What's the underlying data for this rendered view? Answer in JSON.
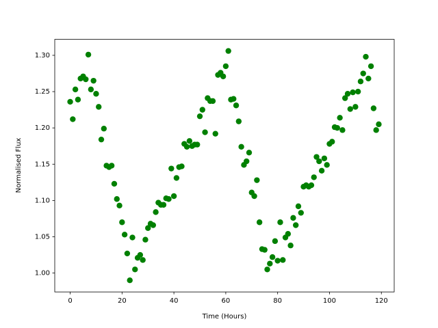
{
  "chart_data": {
    "type": "scatter",
    "xlabel": "Time (Hours)",
    "ylabel": "Normalised Flux",
    "color": "#008000",
    "xlim": [
      -5.95,
      124.95
    ],
    "ylim": [
      0.974,
      1.322
    ],
    "xticks": [
      0,
      20,
      40,
      60,
      80,
      100,
      120
    ],
    "yticks": [
      {
        "value": 1,
        "label": "1.00"
      },
      1.05,
      {
        "value": 1.1,
        "label": "1.10"
      },
      1.15,
      {
        "value": 1.2,
        "label": "1.20"
      },
      1.25,
      {
        "value": 1.3,
        "label": "1.30"
      }
    ],
    "x": [
      0,
      1,
      2,
      3,
      4,
      5,
      6,
      7,
      8,
      9,
      10,
      11,
      12,
      13,
      14,
      15,
      16,
      17,
      18,
      19,
      20,
      21,
      22,
      23,
      24,
      25,
      26,
      27,
      28,
      29,
      30,
      31,
      32,
      33,
      34,
      35,
      36,
      37,
      38,
      39,
      40,
      41,
      42,
      43,
      44,
      45,
      46,
      47,
      48,
      49,
      50,
      51,
      52,
      53,
      54,
      55,
      56,
      57,
      58,
      59,
      60,
      61,
      62,
      63,
      64,
      65,
      66,
      67,
      68,
      69,
      70,
      71,
      72,
      73,
      74,
      75,
      76,
      77,
      78,
      79,
      80,
      81,
      82,
      83,
      84,
      85,
      86,
      87,
      88,
      89,
      90,
      91,
      92,
      93,
      94,
      95,
      96,
      97,
      98,
      99,
      100,
      101,
      102,
      103,
      104,
      105,
      106,
      107,
      108,
      109,
      110,
      111,
      112,
      113,
      114,
      115,
      116,
      117,
      118,
      119
    ],
    "values": [
      1.236,
      1.212,
      1.253,
      1.239,
      1.268,
      1.271,
      1.267,
      1.301,
      1.253,
      1.265,
      1.247,
      1.229,
      1.184,
      1.199,
      1.148,
      1.146,
      1.148,
      1.123,
      1.102,
      1.093,
      1.07,
      1.053,
      1.027,
      0.99,
      1.049,
      1.005,
      1.021,
      1.025,
      1.018,
      1.046,
      1.062,
      1.068,
      1.066,
      1.084,
      1.097,
      1.094,
      1.094,
      1.103,
      1.102,
      1.144,
      1.106,
      1.131,
      1.146,
      1.147,
      1.178,
      1.174,
      1.182,
      1.175,
      1.177,
      1.177,
      1.216,
      1.225,
      1.194,
      1.241,
      1.237,
      1.237,
      1.192,
      1.273,
      1.276,
      1.271,
      1.285,
      1.306,
      1.239,
      1.24,
      1.231,
      1.209,
      1.174,
      1.149,
      1.154,
      1.166,
      1.111,
      1.106,
      1.128,
      1.07,
      1.033,
      1.032,
      1.005,
      1.013,
      1.022,
      1.044,
      1.017,
      1.07,
      1.018,
      1.049,
      1.054,
      1.038,
      1.076,
      1.066,
      1.092,
      1.083,
      1.119,
      1.121,
      1.119,
      1.121,
      1.132,
      1.16,
      1.154,
      1.141,
      1.158,
      1.149,
      1.178,
      1.181,
      1.201,
      1.2,
      1.214,
      1.197,
      1.241,
      1.247,
      1.226,
      1.249,
      1.229,
      1.25,
      1.264,
      1.275,
      1.298,
      1.268,
      1.285,
      1.227,
      1.197,
      1.205
    ]
  }
}
